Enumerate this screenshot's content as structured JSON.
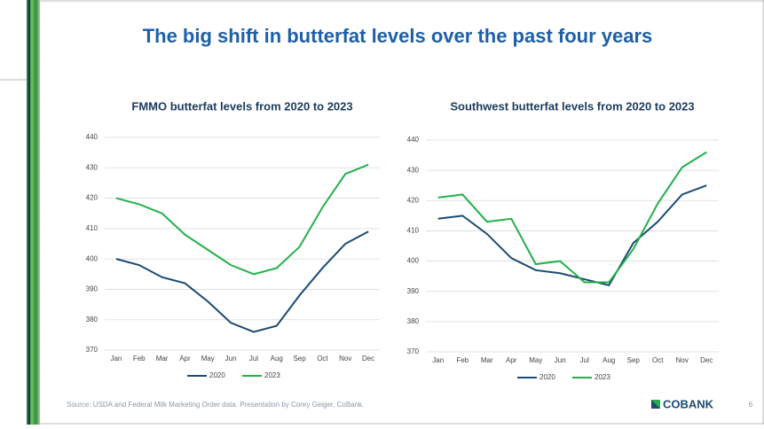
{
  "title": "The big shift in butterfat levels over the past four years",
  "source": "Source: USDA and Federal Milk Marketing Order data. Presentation by Corey Geiger, CoBank.",
  "logo": "COBANK",
  "page_number": "6",
  "chart_data": [
    {
      "type": "line",
      "title": "FMMO butterfat levels from 2020 to 2023",
      "categories": [
        "Jan",
        "Feb",
        "Mar",
        "Apr",
        "May",
        "Jun",
        "Jul",
        "Aug",
        "Sep",
        "Oct",
        "Nov",
        "Dec"
      ],
      "series": [
        {
          "name": "2020",
          "color": "#1b4a72",
          "values": [
            400,
            398,
            394,
            392,
            386,
            379,
            376,
            378,
            388,
            397,
            405,
            409
          ]
        },
        {
          "name": "2023",
          "color": "#22b04b",
          "values": [
            420,
            418,
            415,
            408,
            403,
            398,
            395,
            397,
            404,
            417,
            428,
            431
          ]
        }
      ],
      "ylim": [
        370,
        440
      ],
      "yticks": [
        370,
        380,
        390,
        400,
        410,
        420,
        430,
        440
      ],
      "grid": true,
      "legend": "bottom"
    },
    {
      "type": "line",
      "title": "Southwest butterfat levels from 2020 to 2023",
      "categories": [
        "Jan",
        "Feb",
        "Mar",
        "Apr",
        "May",
        "Jun",
        "Jul",
        "Aug",
        "Sep",
        "Oct",
        "Nov",
        "Dec"
      ],
      "series": [
        {
          "name": "2020",
          "color": "#1b4a72",
          "values": [
            414,
            415,
            409,
            401,
            397,
            396,
            394,
            392,
            406,
            413,
            422,
            425
          ]
        },
        {
          "name": "2023",
          "color": "#22b04b",
          "values": [
            421,
            422,
            413,
            414,
            399,
            400,
            393,
            393,
            404,
            419,
            431,
            436
          ]
        }
      ],
      "ylim": [
        370,
        440
      ],
      "yticks": [
        370,
        380,
        390,
        400,
        410,
        420,
        430,
        440
      ],
      "grid": true,
      "legend": "bottom"
    }
  ]
}
